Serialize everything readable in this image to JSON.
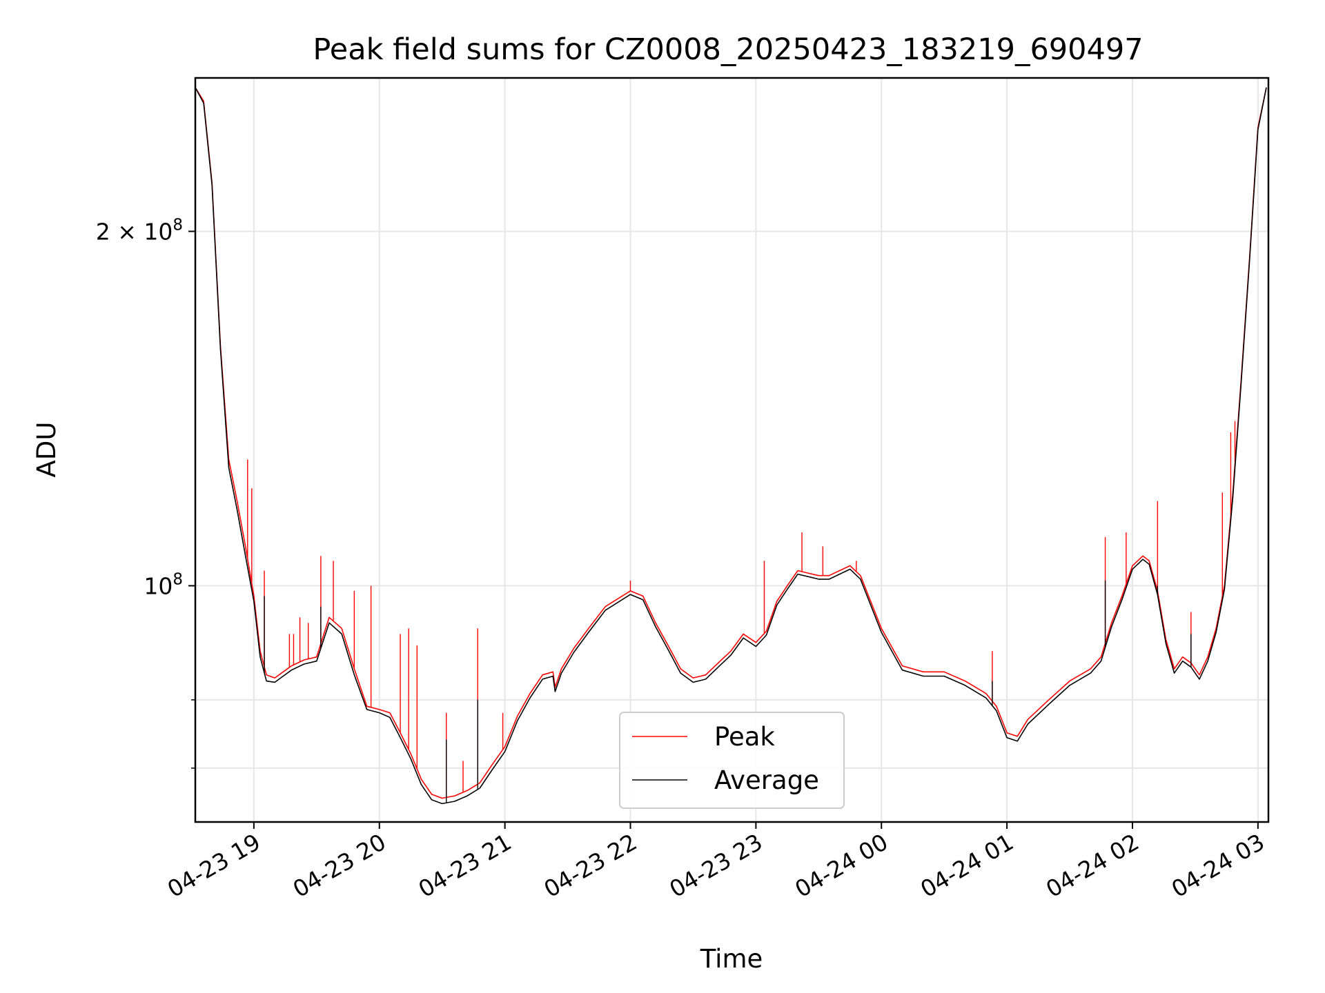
{
  "chart_data": {
    "type": "line",
    "title": "Peak field sums for CZ0008_20250423_183219_690497",
    "xlabel": "Time",
    "ylabel": "ADU",
    "y_scale": "log",
    "ylim": [
      63000000,
      270000000
    ],
    "xlim": [
      "2025-04-23 18:32",
      "2025-04-24 03:05"
    ],
    "grid": true,
    "legend_position": "lower-center",
    "x_ticks": [
      "2025-04-23 19:00",
      "2025-04-23 20:00",
      "2025-04-23 21:00",
      "2025-04-23 22:00",
      "2025-04-23 23:00",
      "2025-04-24 00:00",
      "2025-04-24 01:00",
      "2025-04-24 02:00",
      "2025-04-24 03:00"
    ],
    "x_tick_labels": [
      "04-23 19",
      "04-23 20",
      "04-23 21",
      "04-23 22",
      "04-23 23",
      "04-24 00",
      "04-24 01",
      "04-24 02",
      "04-24 03"
    ],
    "y_major_ticks": [
      {
        "value": 100000000,
        "base": "10",
        "exp": "8",
        "coef": ""
      },
      {
        "value": 200000000,
        "base": "10",
        "exp": "8",
        "coef": "2 × "
      }
    ],
    "y_minor_ticks": [
      70000000,
      80000000
    ],
    "series": [
      {
        "name": "Peak",
        "color": "#ff0000",
        "x": [
          "2025-04-23 18:32",
          "2025-04-23 18:36",
          "2025-04-23 18:40",
          "2025-04-23 18:44",
          "2025-04-23 18:48",
          "2025-04-23 18:52",
          "2025-04-23 18:56",
          "2025-04-23 19:00",
          "2025-04-23 19:03",
          "2025-04-23 19:06",
          "2025-04-23 19:10",
          "2025-04-23 19:14",
          "2025-04-23 19:18",
          "2025-04-23 19:24",
          "2025-04-23 19:30",
          "2025-04-23 19:36",
          "2025-04-23 19:42",
          "2025-04-23 19:48",
          "2025-04-23 19:54",
          "2025-04-23 20:00",
          "2025-04-23 20:05",
          "2025-04-23 20:10",
          "2025-04-23 20:15",
          "2025-04-23 20:20",
          "2025-04-23 20:25",
          "2025-04-23 20:30",
          "2025-04-23 20:36",
          "2025-04-23 20:42",
          "2025-04-23 20:48",
          "2025-04-23 20:54",
          "2025-04-23 21:00",
          "2025-04-23 21:06",
          "2025-04-23 21:12",
          "2025-04-23 21:18",
          "2025-04-23 21:23",
          "2025-04-23 21:24",
          "2025-04-23 21:27",
          "2025-04-23 21:33",
          "2025-04-23 21:40",
          "2025-04-23 21:48",
          "2025-04-23 21:56",
          "2025-04-23 22:00",
          "2025-04-23 22:06",
          "2025-04-23 22:12",
          "2025-04-23 22:18",
          "2025-04-23 22:24",
          "2025-04-23 22:30",
          "2025-04-23 22:36",
          "2025-04-23 22:42",
          "2025-04-23 22:48",
          "2025-04-23 22:54",
          "2025-04-23 23:00",
          "2025-04-23 23:05",
          "2025-04-23 23:10",
          "2025-04-23 23:15",
          "2025-04-23 23:20",
          "2025-04-23 23:25",
          "2025-04-23 23:30",
          "2025-04-23 23:35",
          "2025-04-23 23:40",
          "2025-04-23 23:45",
          "2025-04-23 23:50",
          "2025-04-24 00:00",
          "2025-04-24 00:10",
          "2025-04-24 00:20",
          "2025-04-24 00:30",
          "2025-04-24 00:40",
          "2025-04-24 00:50",
          "2025-04-24 00:55",
          "2025-04-24 01:00",
          "2025-04-24 01:05",
          "2025-04-24 01:10",
          "2025-04-24 01:20",
          "2025-04-24 01:30",
          "2025-04-24 01:40",
          "2025-04-24 01:45",
          "2025-04-24 01:50",
          "2025-04-24 01:55",
          "2025-04-24 02:00",
          "2025-04-24 02:05",
          "2025-04-24 02:08",
          "2025-04-24 02:12",
          "2025-04-24 02:16",
          "2025-04-24 02:20",
          "2025-04-24 02:24",
          "2025-04-24 02:28",
          "2025-04-24 02:32",
          "2025-04-24 02:36",
          "2025-04-24 02:40",
          "2025-04-24 02:44",
          "2025-04-24 02:48",
          "2025-04-24 02:52",
          "2025-04-24 02:56",
          "2025-04-24 03:00",
          "2025-04-24 03:04"
        ],
        "values": [
          265000000,
          258000000,
          220000000,
          160000000,
          128000000,
          118000000,
          108000000,
          98000000,
          88000000,
          84000000,
          83500000,
          84500000,
          85500000,
          86500000,
          87000000,
          94000000,
          92000000,
          85000000,
          79000000,
          78500000,
          78000000,
          75000000,
          72000000,
          68500000,
          66500000,
          66000000,
          66300000,
          67000000,
          68000000,
          70500000,
          73000000,
          77500000,
          81000000,
          84000000,
          84500000,
          82000000,
          85000000,
          88500000,
          92000000,
          96000000,
          98000000,
          99000000,
          98000000,
          93000000,
          89000000,
          85000000,
          83500000,
          84000000,
          86000000,
          88000000,
          91000000,
          89500000,
          91500000,
          97000000,
          100000000,
          103000000,
          102500000,
          102000000,
          102000000,
          103000000,
          104000000,
          102000000,
          92000000,
          85500000,
          84500000,
          84500000,
          83000000,
          81000000,
          79000000,
          75000000,
          74500000,
          77000000,
          80000000,
          83000000,
          85000000,
          87000000,
          93000000,
          98000000,
          104000000,
          106000000,
          105000000,
          99000000,
          90000000,
          85000000,
          87000000,
          86000000,
          84000000,
          87000000,
          92000000,
          100000000,
          120000000,
          150000000,
          190000000,
          245000000,
          265000000
        ]
      },
      {
        "name": "Average",
        "color": "#000000",
        "x": [
          "2025-04-23 18:32",
          "2025-04-23 18:36",
          "2025-04-23 18:40",
          "2025-04-23 18:44",
          "2025-04-23 18:48",
          "2025-04-23 18:52",
          "2025-04-23 18:56",
          "2025-04-23 19:00",
          "2025-04-23 19:03",
          "2025-04-23 19:06",
          "2025-04-23 19:10",
          "2025-04-23 19:14",
          "2025-04-23 19:18",
          "2025-04-23 19:24",
          "2025-04-23 19:30",
          "2025-04-23 19:36",
          "2025-04-23 19:42",
          "2025-04-23 19:48",
          "2025-04-23 19:54",
          "2025-04-23 20:00",
          "2025-04-23 20:05",
          "2025-04-23 20:10",
          "2025-04-23 20:15",
          "2025-04-23 20:20",
          "2025-04-23 20:25",
          "2025-04-23 20:30",
          "2025-04-23 20:36",
          "2025-04-23 20:42",
          "2025-04-23 20:48",
          "2025-04-23 20:54",
          "2025-04-23 21:00",
          "2025-04-23 21:06",
          "2025-04-23 21:12",
          "2025-04-23 21:18",
          "2025-04-23 21:23",
          "2025-04-23 21:24",
          "2025-04-23 21:27",
          "2025-04-23 21:33",
          "2025-04-23 21:40",
          "2025-04-23 21:48",
          "2025-04-23 21:56",
          "2025-04-23 22:00",
          "2025-04-23 22:06",
          "2025-04-23 22:12",
          "2025-04-23 22:18",
          "2025-04-23 22:24",
          "2025-04-23 22:30",
          "2025-04-23 22:36",
          "2025-04-23 22:42",
          "2025-04-23 22:48",
          "2025-04-23 22:54",
          "2025-04-23 23:00",
          "2025-04-23 23:05",
          "2025-04-23 23:10",
          "2025-04-23 23:15",
          "2025-04-23 23:20",
          "2025-04-23 23:25",
          "2025-04-23 23:30",
          "2025-04-23 23:35",
          "2025-04-23 23:40",
          "2025-04-23 23:45",
          "2025-04-23 23:50",
          "2025-04-24 00:00",
          "2025-04-24 00:10",
          "2025-04-24 00:20",
          "2025-04-24 00:30",
          "2025-04-24 00:40",
          "2025-04-24 00:50",
          "2025-04-24 00:55",
          "2025-04-24 01:00",
          "2025-04-24 01:05",
          "2025-04-24 01:10",
          "2025-04-24 01:20",
          "2025-04-24 01:30",
          "2025-04-24 01:40",
          "2025-04-24 01:45",
          "2025-04-24 01:50",
          "2025-04-24 01:55",
          "2025-04-24 02:00",
          "2025-04-24 02:05",
          "2025-04-24 02:08",
          "2025-04-24 02:12",
          "2025-04-24 02:16",
          "2025-04-24 02:20",
          "2025-04-24 02:24",
          "2025-04-24 02:28",
          "2025-04-24 02:32",
          "2025-04-24 02:36",
          "2025-04-24 02:40",
          "2025-04-24 02:44",
          "2025-04-24 02:48",
          "2025-04-24 02:52",
          "2025-04-24 02:56",
          "2025-04-24 03:00",
          "2025-04-24 03:04"
        ],
        "values": [
          265000000,
          257000000,
          219000000,
          159000000,
          126000000,
          116000000,
          106000000,
          97000000,
          87000000,
          83000000,
          82800000,
          83800000,
          84800000,
          85800000,
          86300000,
          93000000,
          91000000,
          84000000,
          78500000,
          78000000,
          77300000,
          74300000,
          71300000,
          67800000,
          65800000,
          65300000,
          65600000,
          66300000,
          67300000,
          69800000,
          72300000,
          76800000,
          80300000,
          83300000,
          83800000,
          81300000,
          84300000,
          87800000,
          91300000,
          95300000,
          97300000,
          98300000,
          97300000,
          92300000,
          88300000,
          84300000,
          82800000,
          83300000,
          85300000,
          87300000,
          90300000,
          88800000,
          90800000,
          96300000,
          99300000,
          102300000,
          101800000,
          101300000,
          101300000,
          102300000,
          103300000,
          101300000,
          91300000,
          84800000,
          83800000,
          83800000,
          82300000,
          80300000,
          78300000,
          74300000,
          73800000,
          76300000,
          79300000,
          82300000,
          84300000,
          86300000,
          92300000,
          97300000,
          103300000,
          105300000,
          104300000,
          98300000,
          89300000,
          84300000,
          86300000,
          85300000,
          83300000,
          86300000,
          91300000,
          99300000,
          119000000,
          149000000,
          189000000,
          244000000,
          265000000
        ]
      }
    ],
    "spikes": {
      "Peak": [
        {
          "x": "2025-04-23 18:57",
          "value": 128000000
        },
        {
          "x": "2025-04-23 18:59",
          "value": 121000000
        },
        {
          "x": "2025-04-23 19:05",
          "value": 103000000
        },
        {
          "x": "2025-04-23 19:17",
          "value": 91000000
        },
        {
          "x": "2025-04-23 19:19",
          "value": 91000000
        },
        {
          "x": "2025-04-23 19:22",
          "value": 94000000
        },
        {
          "x": "2025-04-23 19:26",
          "value": 93000000
        },
        {
          "x": "2025-04-23 19:32",
          "value": 106000000
        },
        {
          "x": "2025-04-23 19:38",
          "value": 105000000
        },
        {
          "x": "2025-04-23 19:48",
          "value": 99000000
        },
        {
          "x": "2025-04-23 19:56",
          "value": 100000000
        },
        {
          "x": "2025-04-23 20:10",
          "value": 91000000
        },
        {
          "x": "2025-04-23 20:14",
          "value": 92000000
        },
        {
          "x": "2025-04-23 20:18",
          "value": 89000000
        },
        {
          "x": "2025-04-23 20:32",
          "value": 78000000
        },
        {
          "x": "2025-04-23 20:40",
          "value": 71000000
        },
        {
          "x": "2025-04-23 20:47",
          "value": 92000000
        },
        {
          "x": "2025-04-23 20:59",
          "value": 78000000
        },
        {
          "x": "2025-04-23 22:00",
          "value": 101000000
        },
        {
          "x": "2025-04-23 23:04",
          "value": 105000000
        },
        {
          "x": "2025-04-23 23:22",
          "value": 111000000
        },
        {
          "x": "2025-04-23 23:32",
          "value": 108000000
        },
        {
          "x": "2025-04-23 23:48",
          "value": 105000000
        },
        {
          "x": "2025-04-24 00:53",
          "value": 88000000
        },
        {
          "x": "2025-04-24 01:47",
          "value": 110000000
        },
        {
          "x": "2025-04-24 01:57",
          "value": 111000000
        },
        {
          "x": "2025-04-24 02:12",
          "value": 118000000
        },
        {
          "x": "2025-04-24 02:28",
          "value": 95000000
        },
        {
          "x": "2025-04-24 02:43",
          "value": 120000000
        },
        {
          "x": "2025-04-24 02:47",
          "value": 135000000
        },
        {
          "x": "2025-04-24 02:49",
          "value": 138000000
        }
      ],
      "Average": [
        {
          "x": "2025-04-23 19:05",
          "value": 98000000
        },
        {
          "x": "2025-04-23 19:32",
          "value": 96000000
        },
        {
          "x": "2025-04-23 20:32",
          "value": 74000000
        },
        {
          "x": "2025-04-23 20:47",
          "value": 80000000
        },
        {
          "x": "2025-04-24 00:53",
          "value": 83000000
        },
        {
          "x": "2025-04-24 01:47",
          "value": 101000000
        },
        {
          "x": "2025-04-24 02:12",
          "value": 100000000
        },
        {
          "x": "2025-04-24 02:28",
          "value": 91000000
        }
      ]
    }
  },
  "legend": {
    "items": [
      {
        "label": "Peak",
        "color": "#ff0000"
      },
      {
        "label": "Average",
        "color": "#000000"
      }
    ]
  }
}
